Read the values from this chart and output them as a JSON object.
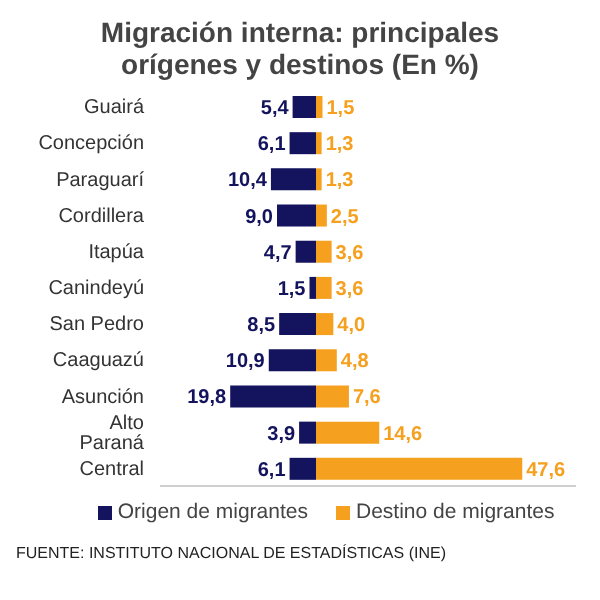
{
  "chart_data": [
    {
      "type": "bar",
      "orientation": "horizontal",
      "title": "Migración interna: principales orígenes y destinos (En %)",
      "categories": [
        "Guairá",
        "Concepción",
        "Paraguarí",
        "Cordillera",
        "Itapúa",
        "Canindeyú",
        "San Pedro",
        "Caaguazú",
        "Asunción",
        "Alto Paraná",
        "Central"
      ],
      "series": [
        {
          "name": "Origen de migrantes",
          "color": "#13135e",
          "values": [
            5.4,
            6.1,
            10.4,
            9.0,
            4.7,
            1.5,
            8.5,
            10.9,
            19.8,
            3.9,
            6.1
          ],
          "value_labels": [
            "5,4",
            "6,1",
            "10,4",
            "9,0",
            "4,7",
            "1,5",
            "8,5",
            "10,9",
            "19,8",
            "3,9",
            "6,1"
          ]
        }
      ],
      "xlim": [
        36,
        0
      ],
      "tick_labels": "y",
      "legend": "bottom",
      "annotations": [
        "FUENTE: INSTITUTO NACIONAL DE ESTADÍSTICAS (INE)"
      ]
    },
    {
      "type": "bar",
      "orientation": "horizontal",
      "categories": [
        null,
        null,
        null,
        null,
        null,
        null,
        null,
        null,
        null,
        null,
        null
      ],
      "series": [
        {
          "name": "Destino de migrantes",
          "color": "#f5a01e",
          "values": [
            1.5,
            1.3,
            1.3,
            2.5,
            3.6,
            3.6,
            4.0,
            4.8,
            7.6,
            14.6,
            47.6
          ],
          "value_labels": [
            "1,5",
            "1,3",
            "1,3",
            "2,5",
            "3,6",
            "3,6",
            "4,0",
            "4,8",
            "7,6",
            "14,6",
            "47,6"
          ]
        }
      ],
      "xlim": [
        0,
        60
      ],
      "tick_labels": false,
      "legend": "bottom"
    }
  ]
}
